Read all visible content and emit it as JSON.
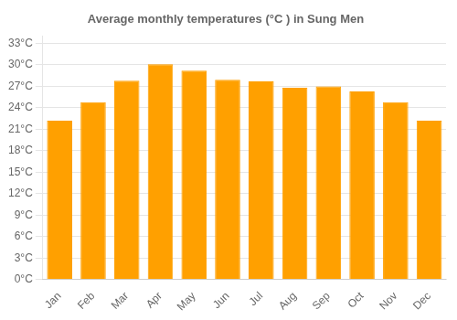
{
  "chart_data": {
    "type": "bar",
    "title": "Average monthly temperatures (°C ) in Sung Men",
    "categories": [
      "Jan",
      "Feb",
      "Mar",
      "Apr",
      "May",
      "Jun",
      "Jul",
      "Aug",
      "Sep",
      "Oct",
      "Nov",
      "Dec"
    ],
    "values": [
      22.2,
      24.8,
      27.8,
      30.1,
      29.2,
      27.9,
      27.7,
      26.8,
      27.0,
      26.3,
      24.8,
      22.2
    ],
    "color": "#FFA000",
    "ylim": [
      0,
      34
    ],
    "yticks": [
      {
        "value": 0,
        "label": "0°C"
      },
      {
        "value": 3,
        "label": "3°C"
      },
      {
        "value": 6,
        "label": "6°C"
      },
      {
        "value": 9,
        "label": "9°C"
      },
      {
        "value": 12,
        "label": "12°C"
      },
      {
        "value": 15,
        "label": "15°C"
      },
      {
        "value": 18,
        "label": "18°C"
      },
      {
        "value": 21,
        "label": "21°C"
      },
      {
        "value": 24,
        "label": "24°C"
      },
      {
        "value": 27,
        "label": "27°C"
      },
      {
        "value": 30,
        "label": "30°C"
      },
      {
        "value": 33,
        "label": "33°C"
      }
    ],
    "grid": true
  }
}
